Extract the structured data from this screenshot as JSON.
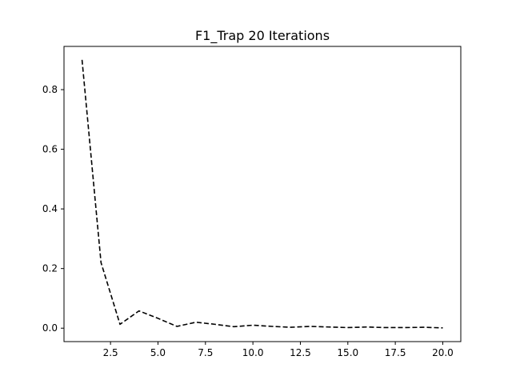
{
  "chart_data": {
    "type": "line",
    "title": "F1_Trap 20 Iterations",
    "xlabel": "",
    "ylabel": "",
    "xlim": [
      0.05,
      20.95
    ],
    "ylim": [
      -0.045,
      0.945
    ],
    "x_ticks": [
      2.5,
      5.0,
      7.5,
      10.0,
      12.5,
      15.0,
      17.5,
      20.0
    ],
    "x_tick_labels": [
      "2.5",
      "5.0",
      "7.5",
      "10.0",
      "12.5",
      "15.0",
      "17.5",
      "20.0"
    ],
    "y_ticks": [
      0.0,
      0.2,
      0.4,
      0.6,
      0.8
    ],
    "y_tick_labels": [
      "0.0",
      "0.2",
      "0.4",
      "0.6",
      "0.8"
    ],
    "grid": false,
    "legend": "none",
    "series": [
      {
        "color": "#000000",
        "line_style": "dashed",
        "x": [
          1,
          2,
          3,
          4,
          5,
          6,
          7,
          8,
          9,
          10,
          11,
          12,
          13,
          14,
          15,
          16,
          17,
          18,
          19,
          20
        ],
        "y": [
          0.9,
          0.22,
          0.013,
          0.058,
          0.033,
          0.006,
          0.02,
          0.013,
          0.005,
          0.01,
          0.006,
          0.003,
          0.006,
          0.004,
          0.002,
          0.004,
          0.002,
          0.002,
          0.003,
          0.001
        ]
      }
    ]
  }
}
